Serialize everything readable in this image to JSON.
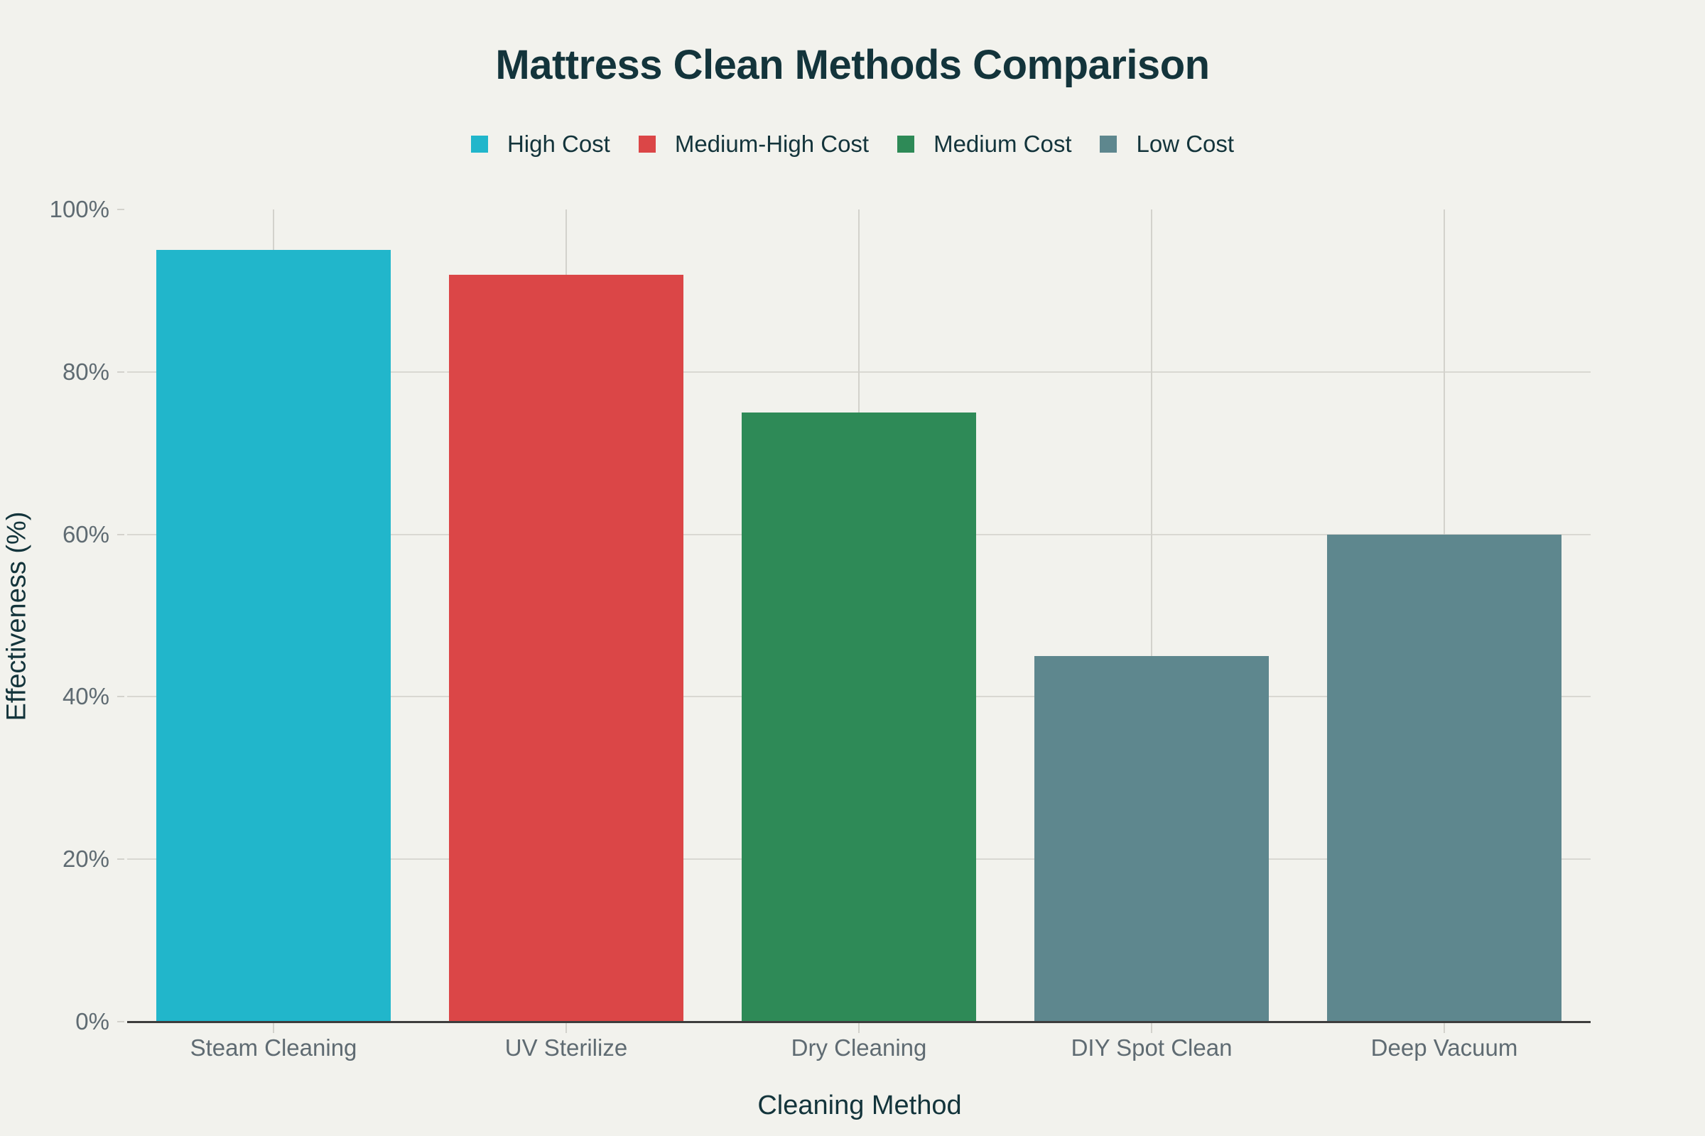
{
  "chart_data": {
    "type": "bar",
    "title": "Mattress Clean Methods Comparison",
    "xlabel": "Cleaning Method",
    "ylabel": "Effectiveness (%)",
    "categories": [
      "Steam Cleaning",
      "UV Sterilize",
      "Dry Cleaning",
      "DIY Spot Clean",
      "Deep Vacuum"
    ],
    "values": [
      95,
      92,
      75,
      45,
      60
    ],
    "cost_group": [
      "High Cost",
      "Medium-High Cost",
      "Medium Cost",
      "Low Cost",
      "Low Cost"
    ],
    "ylim": [
      0,
      100
    ],
    "yticks": [
      "0%",
      "20%",
      "40%",
      "60%",
      "80%",
      "100%"
    ],
    "grid": true,
    "legend_position": "top",
    "legend": [
      {
        "label": "High Cost",
        "color": "#21b6cb"
      },
      {
        "label": "Medium-High Cost",
        "color": "#db4647"
      },
      {
        "label": "Medium Cost",
        "color": "#2e8a57"
      },
      {
        "label": "Low Cost",
        "color": "#5e878e"
      }
    ],
    "colors": [
      "#21b6cb",
      "#db4647",
      "#2e8a57",
      "#5e878e",
      "#5e878e"
    ]
  }
}
